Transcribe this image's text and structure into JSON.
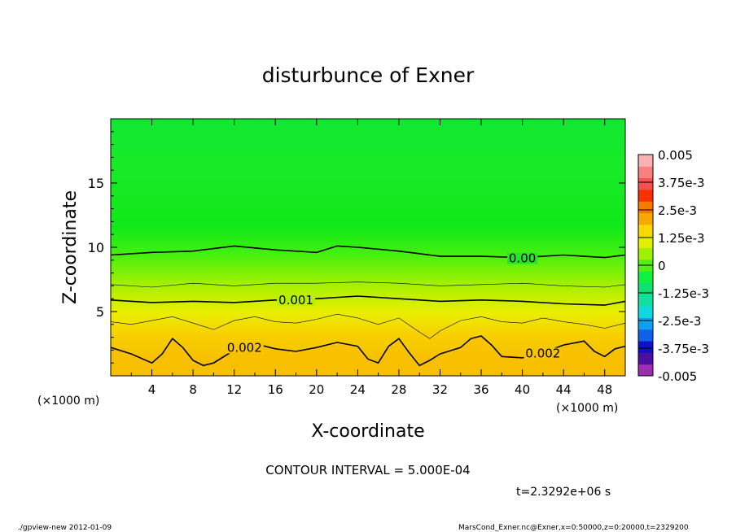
{
  "chart_data": {
    "type": "heatmap",
    "title": "disturbunce of Exner",
    "xlabel": "X-coordinate",
    "ylabel": "Z-coordinate",
    "x_unit_left": "(×1000 m)",
    "x_unit_right": "(×1000 m)",
    "xlim": [
      0,
      50
    ],
    "ylim": [
      0,
      20
    ],
    "x_ticks": [
      4,
      8,
      12,
      16,
      20,
      24,
      28,
      32,
      36,
      40,
      44,
      48
    ],
    "y_ticks": [
      5,
      10,
      15
    ],
    "colorbar": {
      "min": -0.005,
      "max": 0.005,
      "tick_labels": [
        "0.005",
        "3.75e-3",
        "2.5e-3",
        "1.25e-3",
        "0",
        "-1.25e-3",
        "-2.5e-3",
        "-3.75e-3",
        "-0.005"
      ],
      "colors": [
        "#9b2fb0",
        "#4b0fa0",
        "#1010c8",
        "#1060e8",
        "#10a0f0",
        "#10d8e0",
        "#10e0a0",
        "#10e070",
        "#10f040",
        "#50f010",
        "#a0f000",
        "#e0f000",
        "#f8d800",
        "#f8a800",
        "#f87800",
        "#f83000",
        "#f85050",
        "#f88080",
        "#f8b0b0"
      ]
    },
    "contours": [
      {
        "label": "0.00",
        "level": 0.0,
        "x": [
          0,
          4,
          8,
          12,
          16,
          20,
          22,
          24,
          28,
          32,
          36,
          40,
          44,
          46,
          48,
          50
        ],
        "y": [
          9.4,
          9.6,
          9.7,
          10.1,
          9.8,
          9.6,
          10.1,
          10.0,
          9.7,
          9.3,
          9.3,
          9.2,
          9.4,
          9.3,
          9.2,
          9.4
        ]
      },
      {
        "label": "0.001",
        "level": 0.001,
        "x": [
          0,
          4,
          8,
          12,
          16,
          20,
          24,
          28,
          32,
          36,
          40,
          44,
          48,
          50
        ],
        "y": [
          5.9,
          5.7,
          5.8,
          5.7,
          5.9,
          6.0,
          6.2,
          6.0,
          5.8,
          5.9,
          5.8,
          5.6,
          5.5,
          5.8
        ]
      },
      {
        "label": "0.002",
        "level": 0.002,
        "x": [
          0,
          2,
          4,
          5,
          6,
          7,
          8,
          9,
          10,
          12,
          14,
          16,
          18,
          20,
          22,
          24,
          25,
          26,
          27,
          28,
          29,
          30,
          31,
          32,
          34,
          35,
          36,
          37,
          38,
          40,
          42,
          44,
          46,
          47,
          48,
          49,
          50
        ],
        "y": [
          2.2,
          1.7,
          1.0,
          1.7,
          2.9,
          2.2,
          1.2,
          0.8,
          1.0,
          2.0,
          2.5,
          2.1,
          1.9,
          2.2,
          2.6,
          2.3,
          1.3,
          1.0,
          2.3,
          2.9,
          1.8,
          0.8,
          1.2,
          1.7,
          2.2,
          2.9,
          3.1,
          2.4,
          1.5,
          1.4,
          1.8,
          2.4,
          2.7,
          1.9,
          1.5,
          2.1,
          2.3
        ]
      }
    ],
    "thin_contours": [
      {
        "level": 0.0005,
        "x": [
          0,
          4,
          8,
          12,
          16,
          20,
          24,
          28,
          32,
          36,
          40,
          44,
          48,
          50
        ],
        "y": [
          7.1,
          6.9,
          7.2,
          7.0,
          7.2,
          7.2,
          7.3,
          7.2,
          7.0,
          7.1,
          7.2,
          7.0,
          6.9,
          7.1
        ]
      },
      {
        "level": 0.0015,
        "x": [
          0,
          2,
          4,
          6,
          8,
          10,
          12,
          14,
          16,
          18,
          20,
          22,
          24,
          26,
          28,
          30,
          31,
          32,
          34,
          36,
          38,
          40,
          42,
          44,
          46,
          48,
          50
        ],
        "y": [
          4.2,
          4.0,
          4.3,
          4.6,
          4.1,
          3.6,
          4.3,
          4.6,
          4.2,
          4.1,
          4.4,
          4.8,
          4.5,
          4.0,
          4.5,
          3.4,
          2.9,
          3.5,
          4.3,
          4.6,
          4.2,
          4.1,
          4.5,
          4.2,
          4.0,
          3.7,
          4.1
        ]
      }
    ]
  },
  "contour_interval_text": "CONTOUR INTERVAL = 5.000E-04",
  "time_text": "t=2.3292e+06 s",
  "footer_left": "./gpview-new   2012-01-09",
  "footer_right": "MarsCond_Exner.nc@Exner,x=0:50000,z=0:20000,t=2329200"
}
